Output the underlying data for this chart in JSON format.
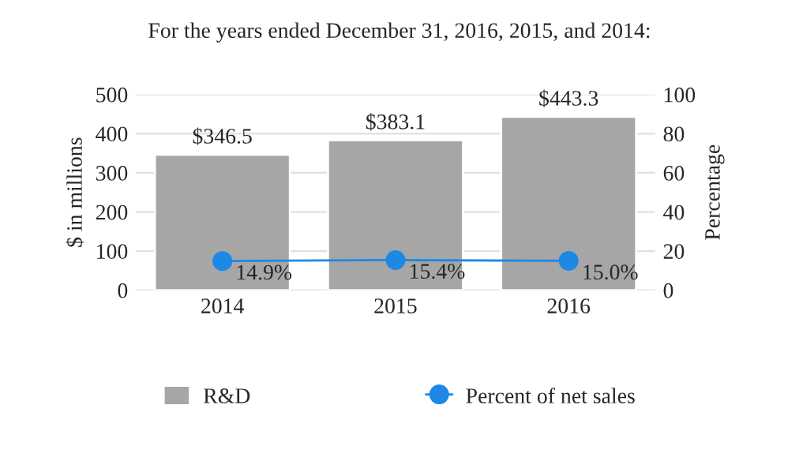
{
  "chart_data": {
    "type": "bar",
    "title": "For the years ended December 31, 2016, 2015, and 2014:",
    "categories": [
      "2014",
      "2015",
      "2016"
    ],
    "ylabel": "$ in millions",
    "y2label": "Percentage",
    "ylim": [
      0,
      500
    ],
    "yticks": [
      0,
      100,
      200,
      300,
      400,
      500
    ],
    "y2lim": [
      0,
      100
    ],
    "y2ticks": [
      0,
      20,
      40,
      60,
      80,
      100
    ],
    "grid": "y",
    "legend": "bottom",
    "marker": "circle",
    "series": [
      {
        "name": "R&D",
        "color": "#a6a6a6",
        "values": [
          346.5,
          383.1,
          443.3
        ],
        "value_labels": [
          "$346.5",
          "$383.1",
          "$443.3"
        ]
      },
      {
        "name": "Percent of net sales",
        "type": "line",
        "axis": "y2",
        "color": "#1e88e5",
        "values": [
          14.9,
          15.4,
          15.0
        ],
        "value_labels": [
          "14.9%",
          "15.4%",
          "15.0%"
        ]
      }
    ]
  }
}
